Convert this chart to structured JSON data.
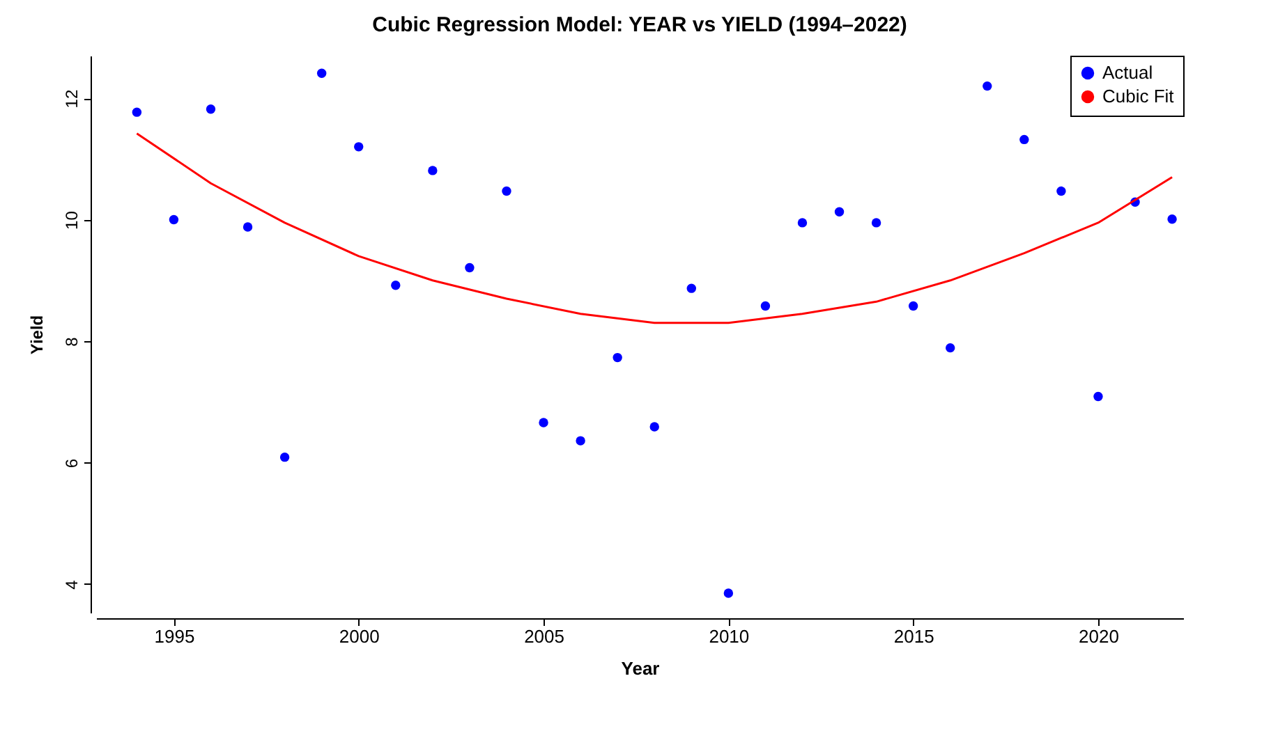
{
  "chart_data": {
    "type": "scatter",
    "title": "Cubic Regression Model: YEAR vs YIELD (1994–2022)",
    "xlabel": "Year",
    "ylabel": "Yield",
    "xlim": [
      1992.9,
      2022.3
    ],
    "xticks": [
      1995,
      2000,
      2005,
      2010,
      2015,
      2020
    ],
    "ylim": [
      3.53,
      12.7
    ],
    "yticks": [
      4,
      6,
      8,
      10,
      12
    ],
    "grid": false,
    "legend": "top right",
    "line_style": "solid",
    "series": [
      {
        "name": "Actual",
        "color": "#0000ff",
        "marker": "circle",
        "x": [
          1994,
          1995,
          1996,
          1997,
          1998,
          1999,
          2000,
          2001,
          2002,
          2003,
          2004,
          2005,
          2006,
          2007,
          2008,
          2009,
          2010,
          2011,
          2012,
          2013,
          2014,
          2015,
          2016,
          2017,
          2018,
          2019,
          2020,
          2021,
          2022
        ],
        "values": [
          11.77,
          10.0,
          11.82,
          9.88,
          6.09,
          12.41,
          11.2,
          8.92,
          10.81,
          9.21,
          10.47,
          6.66,
          6.36,
          7.73,
          6.59,
          8.87,
          3.85,
          8.58,
          9.95,
          10.13,
          9.95,
          8.58,
          7.89,
          12.2,
          11.32,
          10.47,
          7.09,
          10.29,
          10.01
        ]
      },
      {
        "name": "Cubic Fit",
        "color": "#ff0000",
        "type": "line",
        "x": [
          1994,
          1996,
          1998,
          2000,
          2002,
          2004,
          2006,
          2008,
          2010,
          2012,
          2014,
          2016,
          2018,
          2020,
          2022
        ],
        "values": [
          11.42,
          10.6,
          9.95,
          9.4,
          9.0,
          8.7,
          8.45,
          8.3,
          8.3,
          8.45,
          8.65,
          9.0,
          9.45,
          9.95,
          10.7
        ]
      }
    ]
  }
}
